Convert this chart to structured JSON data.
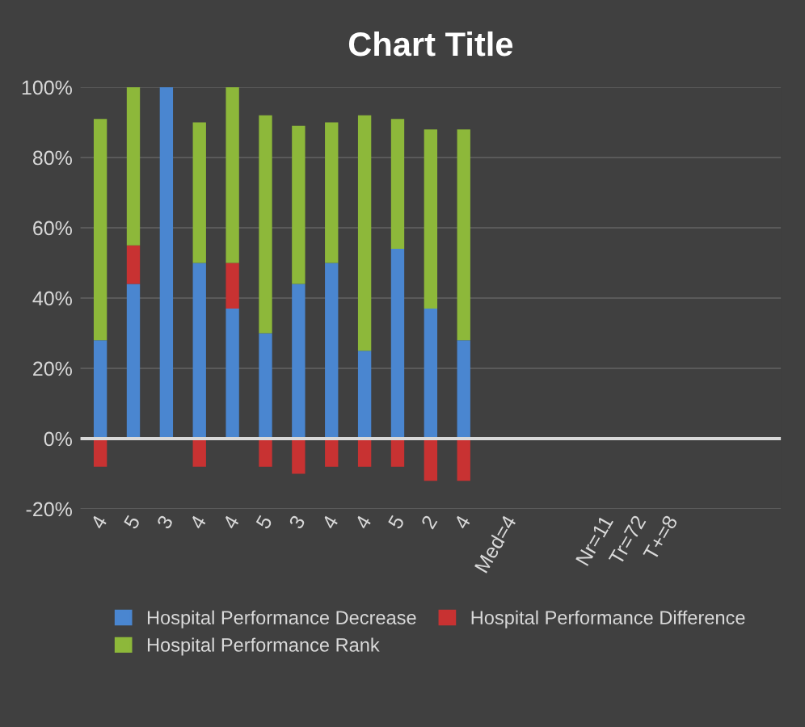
{
  "chart_data": {
    "type": "bar",
    "title": "Chart Title",
    "stacked": true,
    "categories": [
      "4",
      "5",
      "3",
      "4",
      "4",
      "5",
      "3",
      "4",
      "4",
      "5",
      "2",
      "4",
      "Med=4",
      null,
      null,
      "Nr=11",
      "Tr=72",
      "T+=8",
      null,
      null,
      null
    ],
    "series": [
      {
        "name": "Hospital Performance Decrease",
        "color": "#4a86d0",
        "values": [
          28,
          44,
          100,
          50,
          37,
          30,
          44,
          50,
          25,
          54,
          37,
          28,
          null,
          null,
          null,
          null,
          null,
          null,
          null,
          null,
          null
        ]
      },
      {
        "name": "Hospital Performance Difference",
        "color": "#c83232",
        "values": [
          -8,
          11,
          0,
          -8,
          13,
          -8,
          -10,
          -8,
          -8,
          -8,
          -12,
          -12,
          null,
          null,
          null,
          null,
          null,
          null,
          null,
          null,
          null
        ]
      },
      {
        "name": "Hospital Performance Rank",
        "color": "#8db83a",
        "values": [
          63,
          45,
          0,
          40,
          50,
          62,
          45,
          40,
          67,
          37,
          51,
          60,
          null,
          null,
          null,
          null,
          null,
          null,
          null,
          null,
          null
        ]
      }
    ],
    "ylim": [
      -20,
      100
    ],
    "yticks": [
      {
        "value": -20,
        "label": "-20%"
      },
      {
        "value": 0,
        "label": "0%"
      },
      {
        "value": 20,
        "label": "20%"
      },
      {
        "value": 40,
        "label": "40%"
      },
      {
        "value": 60,
        "label": "60%"
      },
      {
        "value": 80,
        "label": "80%"
      },
      {
        "value": 100,
        "label": "100%"
      }
    ],
    "grid": "y",
    "legend": "bottom"
  }
}
